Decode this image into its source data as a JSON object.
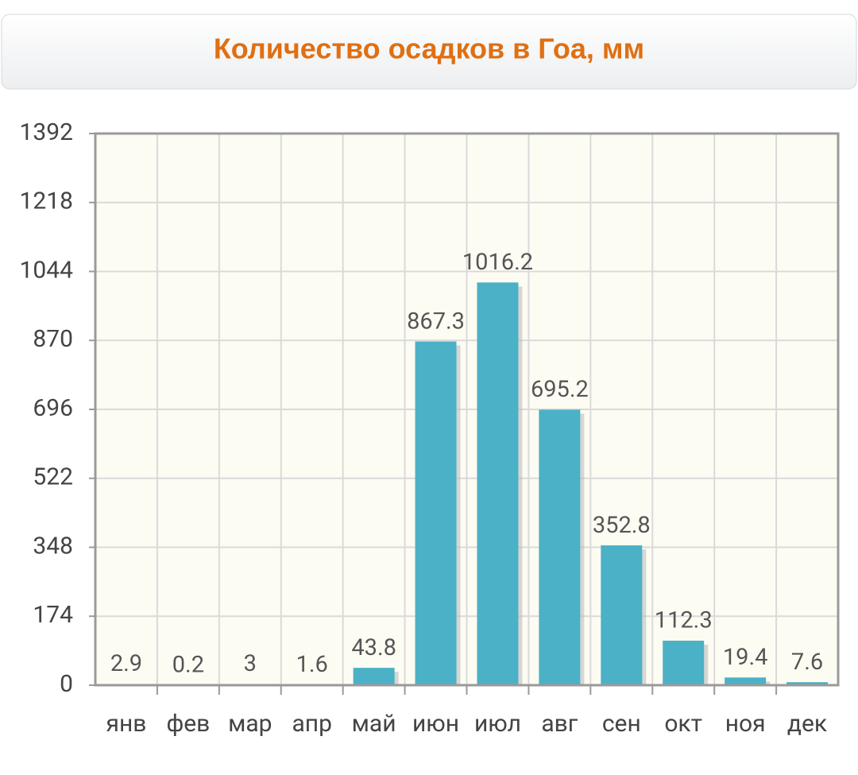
{
  "chart_data": {
    "type": "bar",
    "title": "Количество осадков в Гоа, мм",
    "categories": [
      "янв",
      "фев",
      "мар",
      "апр",
      "май",
      "июн",
      "июл",
      "авг",
      "сен",
      "окт",
      "ноя",
      "дек"
    ],
    "values": [
      2.9,
      0.2,
      3,
      1.6,
      43.8,
      867.3,
      1016.2,
      695.2,
      352.8,
      112.3,
      19.4,
      7.6
    ],
    "color": "#4bb1c6",
    "ylim": [
      0,
      1392
    ],
    "yticks": [
      0,
      174,
      348,
      522,
      696,
      870,
      1044,
      1218,
      1392
    ],
    "grid": true
  }
}
